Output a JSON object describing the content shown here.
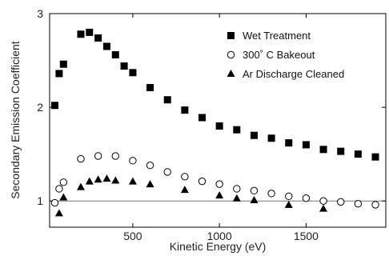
{
  "chart_data": {
    "type": "scatter",
    "title": "",
    "xlabel": "Kinetic Energy (eV)",
    "ylabel": "Secondary Emission Coefficient",
    "xlim": [
      20,
      1960
    ],
    "ylim": [
      0.72,
      3.0
    ],
    "xticks": [
      500,
      1000,
      1500
    ],
    "yticks": [
      1,
      2,
      3
    ],
    "reference_line": {
      "y": 1.0
    },
    "legend": {
      "placement": "top-right"
    },
    "series": [
      {
        "name": "Wet Treatment",
        "marker": "filled-square",
        "color": "#000000",
        "x": [
          50,
          75,
          100,
          200,
          250,
          300,
          350,
          400,
          450,
          500,
          600,
          700,
          800,
          900,
          1000,
          1100,
          1200,
          1300,
          1400,
          1500,
          1600,
          1700,
          1800,
          1900
        ],
        "y": [
          2.02,
          2.36,
          2.46,
          2.78,
          2.8,
          2.74,
          2.65,
          2.56,
          2.44,
          2.37,
          2.21,
          2.08,
          1.97,
          1.89,
          1.8,
          1.76,
          1.7,
          1.67,
          1.62,
          1.6,
          1.55,
          1.53,
          1.5,
          1.47
        ]
      },
      {
        "name": "300˚ C Bakeout",
        "marker": "open-circle",
        "color": "#000000",
        "x": [
          50,
          75,
          100,
          200,
          300,
          400,
          500,
          600,
          700,
          800,
          900,
          1000,
          1100,
          1200,
          1300,
          1400,
          1500,
          1600,
          1700,
          1800,
          1900
        ],
        "y": [
          0.98,
          1.13,
          1.2,
          1.45,
          1.48,
          1.48,
          1.43,
          1.38,
          1.31,
          1.26,
          1.21,
          1.18,
          1.13,
          1.11,
          1.08,
          1.05,
          1.03,
          1.0,
          0.99,
          0.97,
          0.96
        ]
      },
      {
        "name": "Ar Discharge Cleaned",
        "marker": "filled-triangle",
        "color": "#000000",
        "x": [
          75,
          100,
          200,
          250,
          300,
          350,
          400,
          500,
          600,
          800,
          1000,
          1100,
          1200,
          1400,
          1600
        ],
        "y": [
          0.87,
          1.04,
          1.15,
          1.21,
          1.23,
          1.24,
          1.22,
          1.21,
          1.18,
          1.12,
          1.06,
          1.03,
          1.01,
          0.96,
          0.92
        ]
      }
    ]
  }
}
